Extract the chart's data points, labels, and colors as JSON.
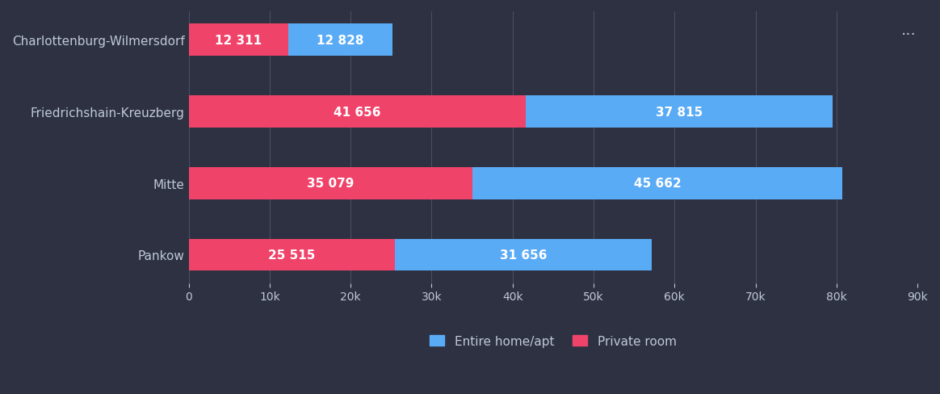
{
  "categories": [
    "Charlottenburg-Wilmersdorf",
    "Friedrichshain-Kreuzberg",
    "Mitte",
    "Pankow"
  ],
  "private_room": [
    12311,
    41656,
    35079,
    25515
  ],
  "entire_home": [
    12828,
    37815,
    45662,
    31656
  ],
  "private_room_color": "#f0436a",
  "entire_home_color": "#5aabf5",
  "background_color": "#2d3142",
  "plot_bg_color": "#2d3142",
  "text_color": "#c0c8d8",
  "bar_text_color": "#ffffff",
  "grid_color": "#4a5068",
  "bar_height": 0.45,
  "xlim": [
    0,
    90000
  ],
  "xtick_step": 10000,
  "legend_labels": [
    "Entire home/apt",
    "Private room"
  ],
  "legend_colors": [
    "#5aabf5",
    "#f0436a"
  ],
  "font_size_labels": 11,
  "font_size_bar_text": 11,
  "font_size_ticks": 10,
  "font_size_legend": 11
}
